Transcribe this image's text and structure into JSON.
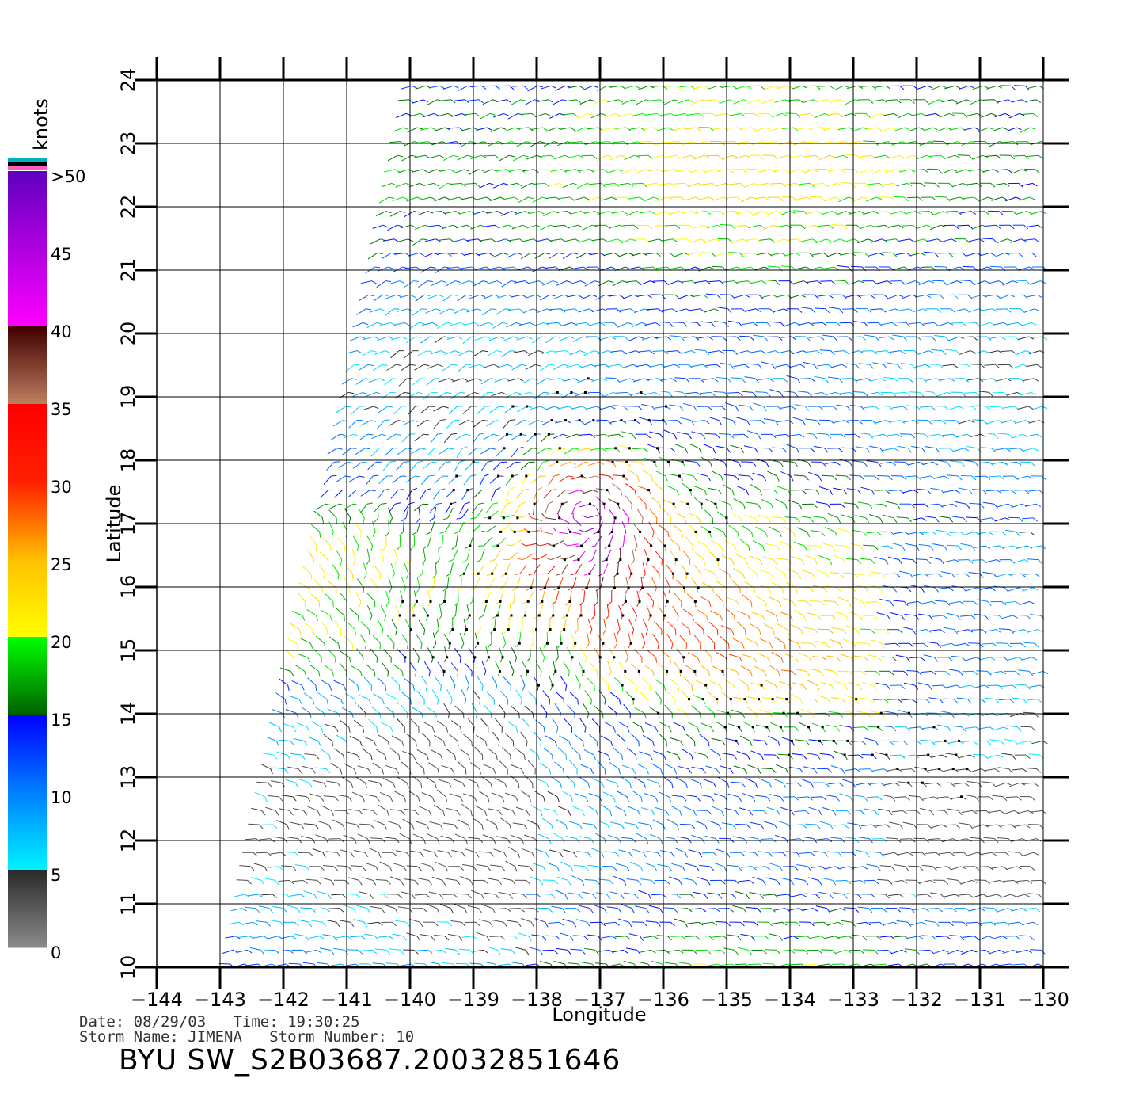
{
  "map": {
    "lon_range": [
      -144,
      -130
    ],
    "lat_range": [
      10,
      24
    ],
    "x_ticks": [
      -144,
      -143,
      -142,
      -141,
      -140,
      -139,
      -138,
      -137,
      -136,
      -135,
      -134,
      -133,
      -132,
      -131,
      -130
    ],
    "x_tick_labels": [
      "−144",
      "−143",
      "−142",
      "−141",
      "−140",
      "−139",
      "−138",
      "−137",
      "−136",
      "−135",
      "−134",
      "−133",
      "−132",
      "−131",
      "−130"
    ],
    "y_ticks": [
      10,
      11,
      12,
      13,
      14,
      15,
      16,
      17,
      18,
      19,
      20,
      21,
      22,
      23,
      24
    ],
    "y_tick_labels": [
      "10",
      "11",
      "12",
      "13",
      "14",
      "15",
      "16",
      "17",
      "18",
      "19",
      "20",
      "21",
      "22",
      "23",
      "24"
    ],
    "xlabel": "Longitude",
    "ylabel": "Latitude",
    "grid": true,
    "swath_corners": [
      [
        -140,
        24
      ],
      [
        -130,
        24
      ],
      [
        -130,
        10
      ],
      [
        -142.9,
        10
      ]
    ],
    "storm_center": [
      -137.2,
      17.1
    ]
  },
  "colorbar": {
    "unit": "knots",
    "labels": [
      ">50",
      "45",
      "40",
      "35",
      "30",
      "25",
      "20",
      "15",
      "10",
      "5",
      "0"
    ],
    "stops": [
      {
        "value": 0,
        "color": "#8c8c8c"
      },
      {
        "value": 5,
        "color": "#2a2a2a"
      },
      {
        "value": 5.01,
        "color": "#00f4ff"
      },
      {
        "value": 10,
        "color": "#0080ff"
      },
      {
        "value": 15,
        "color": "#0000ff"
      },
      {
        "value": 15.01,
        "color": "#006000"
      },
      {
        "value": 20,
        "color": "#00ff00"
      },
      {
        "value": 20.01,
        "color": "#ffff00"
      },
      {
        "value": 25,
        "color": "#ffc000"
      },
      {
        "value": 30,
        "color": "#ff2000"
      },
      {
        "value": 35,
        "color": "#ff0000"
      },
      {
        "value": 35.01,
        "color": "#c08060"
      },
      {
        "value": 40,
        "color": "#400000"
      },
      {
        "value": 40.01,
        "color": "#ff00ff"
      },
      {
        "value": 50,
        "color": "#6000c0"
      }
    ],
    "cap_colors": [
      "#00b0c0",
      "#000000",
      "#ff60c0"
    ]
  },
  "info": {
    "date_line": "Date: 08/29/03   Time: 19:30:25",
    "storm_line": "Storm Name: JIMENA   Storm Number: 10",
    "title": "BYU SW_S2B03687.20032851646"
  }
}
